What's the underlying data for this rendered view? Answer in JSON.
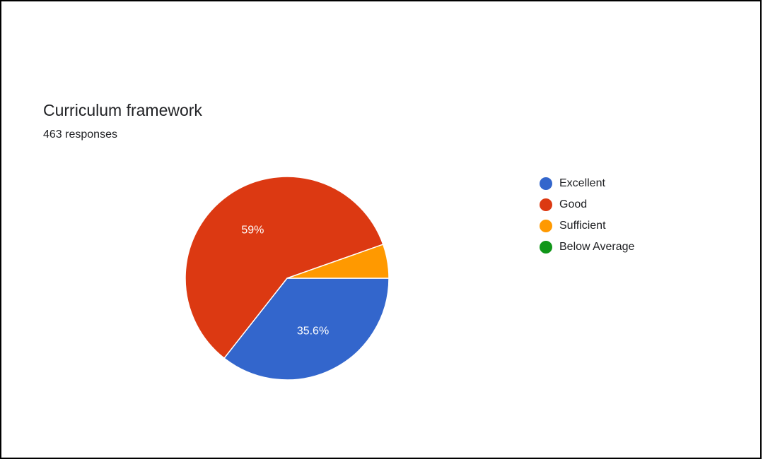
{
  "chart_data": {
    "type": "pie",
    "title": "Curriculum framework",
    "subtitle": "463 responses",
    "categories": [
      "Excellent",
      "Good",
      "Sufficient",
      "Below Average"
    ],
    "values": [
      35.6,
      59,
      5.4,
      0
    ],
    "value_labels": [
      "35.6%",
      "59%",
      "",
      ""
    ],
    "colors": [
      "#3366cc",
      "#dc3912",
      "#ff9900",
      "#109618"
    ],
    "legend_placement": "right"
  }
}
